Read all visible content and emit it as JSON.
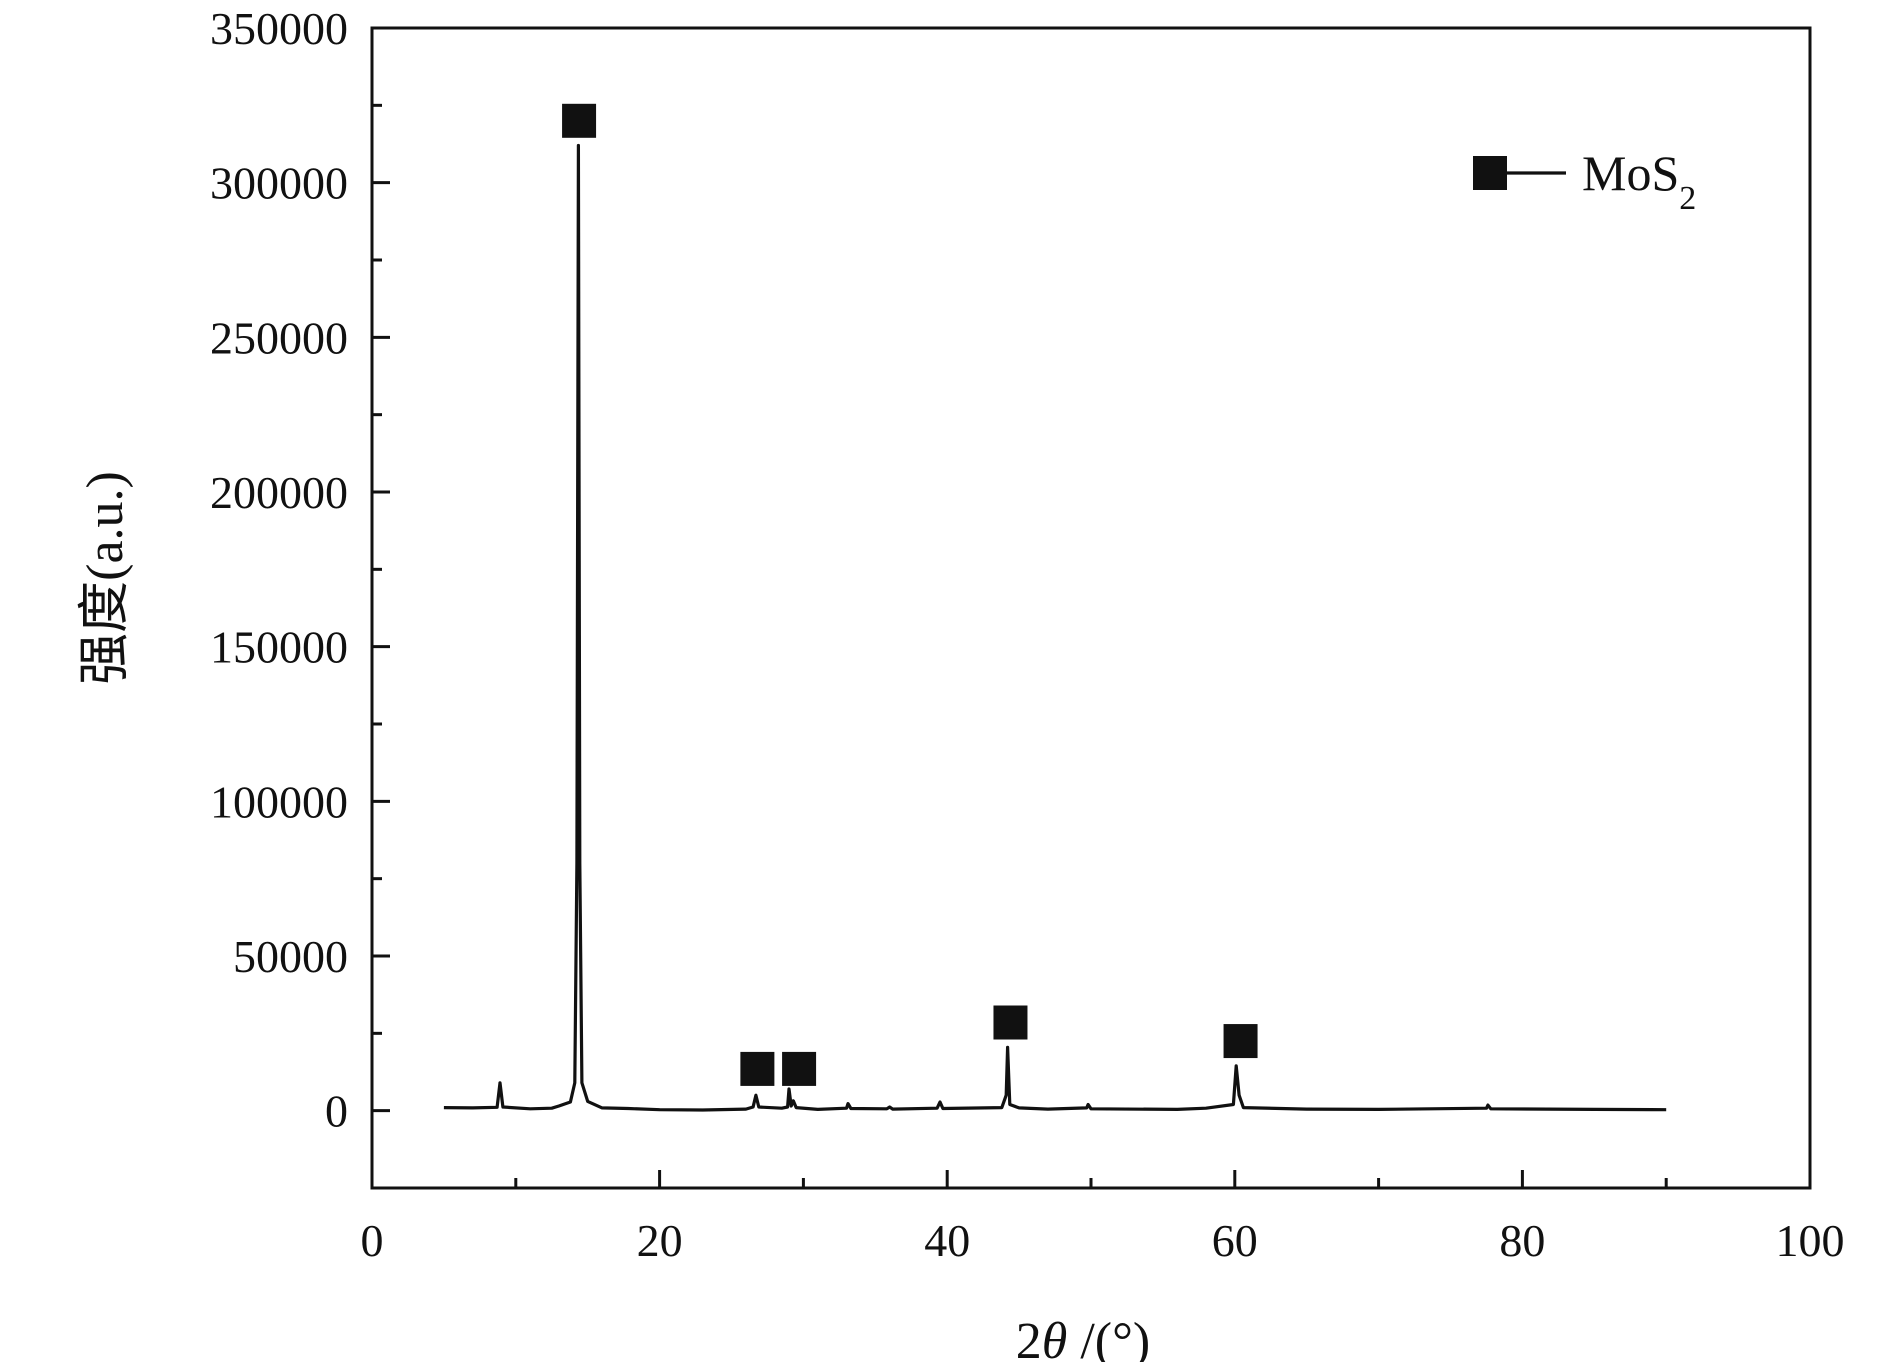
{
  "chart_data": {
    "type": "line",
    "xlabel": "2θ /(°)",
    "ylabel": "强度(a.u.)",
    "xlim": [
      0,
      100
    ],
    "ylim": [
      -25000,
      350000
    ],
    "x_ticks": [
      0,
      20,
      40,
      60,
      80,
      100
    ],
    "x_tick_labels": [
      "0",
      "20",
      "40",
      "60",
      "80",
      "100"
    ],
    "y_ticks": [
      0,
      50000,
      100000,
      150000,
      200000,
      250000,
      300000,
      350000
    ],
    "y_tick_labels": [
      "0",
      "50000",
      "100000",
      "150000",
      "200000",
      "250000",
      "300000",
      "350000"
    ],
    "grid": false,
    "legend_position": "top-right",
    "legend": [
      {
        "label": "MoS",
        "subscript": "2",
        "marker": "square"
      }
    ],
    "series": [
      {
        "name": "MoS2",
        "color": "#111111",
        "points": [
          [
            5.0,
            1000
          ],
          [
            7.0,
            900
          ],
          [
            8.7,
            1100
          ],
          [
            8.9,
            9000
          ],
          [
            9.1,
            1200
          ],
          [
            11.0,
            600
          ],
          [
            12.5,
            800
          ],
          [
            13.0,
            1500
          ],
          [
            13.8,
            2800
          ],
          [
            14.1,
            9000
          ],
          [
            14.25,
            80000
          ],
          [
            14.35,
            312000
          ],
          [
            14.45,
            80000
          ],
          [
            14.6,
            9000
          ],
          [
            15.0,
            3000
          ],
          [
            16.0,
            900
          ],
          [
            17.8,
            700
          ],
          [
            20.0,
            300
          ],
          [
            23.0,
            200
          ],
          [
            26.0,
            500
          ],
          [
            26.5,
            1200
          ],
          [
            26.7,
            5000
          ],
          [
            26.9,
            1200
          ],
          [
            28.5,
            800
          ],
          [
            28.9,
            1200
          ],
          [
            29.0,
            7000
          ],
          [
            29.15,
            1500
          ],
          [
            29.3,
            3200
          ],
          [
            29.5,
            1000
          ],
          [
            31.0,
            400
          ],
          [
            33.0,
            800
          ],
          [
            33.1,
            2300
          ],
          [
            33.3,
            700
          ],
          [
            35.8,
            600
          ],
          [
            36.0,
            1200
          ],
          [
            36.2,
            500
          ],
          [
            39.3,
            800
          ],
          [
            39.5,
            2800
          ],
          [
            39.7,
            700
          ],
          [
            43.8,
            1000
          ],
          [
            44.1,
            5000
          ],
          [
            44.2,
            20500
          ],
          [
            44.35,
            2000
          ],
          [
            45.0,
            900
          ],
          [
            47.0,
            500
          ],
          [
            49.7,
            900
          ],
          [
            49.8,
            2000
          ],
          [
            50.0,
            600
          ],
          [
            56.0,
            400
          ],
          [
            58.0,
            800
          ],
          [
            59.9,
            2000
          ],
          [
            60.1,
            14500
          ],
          [
            60.3,
            5000
          ],
          [
            60.6,
            1000
          ],
          [
            65.0,
            500
          ],
          [
            70.0,
            400
          ],
          [
            77.5,
            800
          ],
          [
            77.6,
            1800
          ],
          [
            77.8,
            600
          ],
          [
            85.0,
            400
          ],
          [
            90.0,
            300
          ]
        ]
      }
    ],
    "peak_markers": [
      {
        "x": 14.4,
        "y": 320000
      },
      {
        "x": 26.8,
        "y": 13500
      },
      {
        "x": 29.7,
        "y": 13500
      },
      {
        "x": 44.4,
        "y": 28500
      },
      {
        "x": 60.4,
        "y": 22500
      }
    ]
  }
}
